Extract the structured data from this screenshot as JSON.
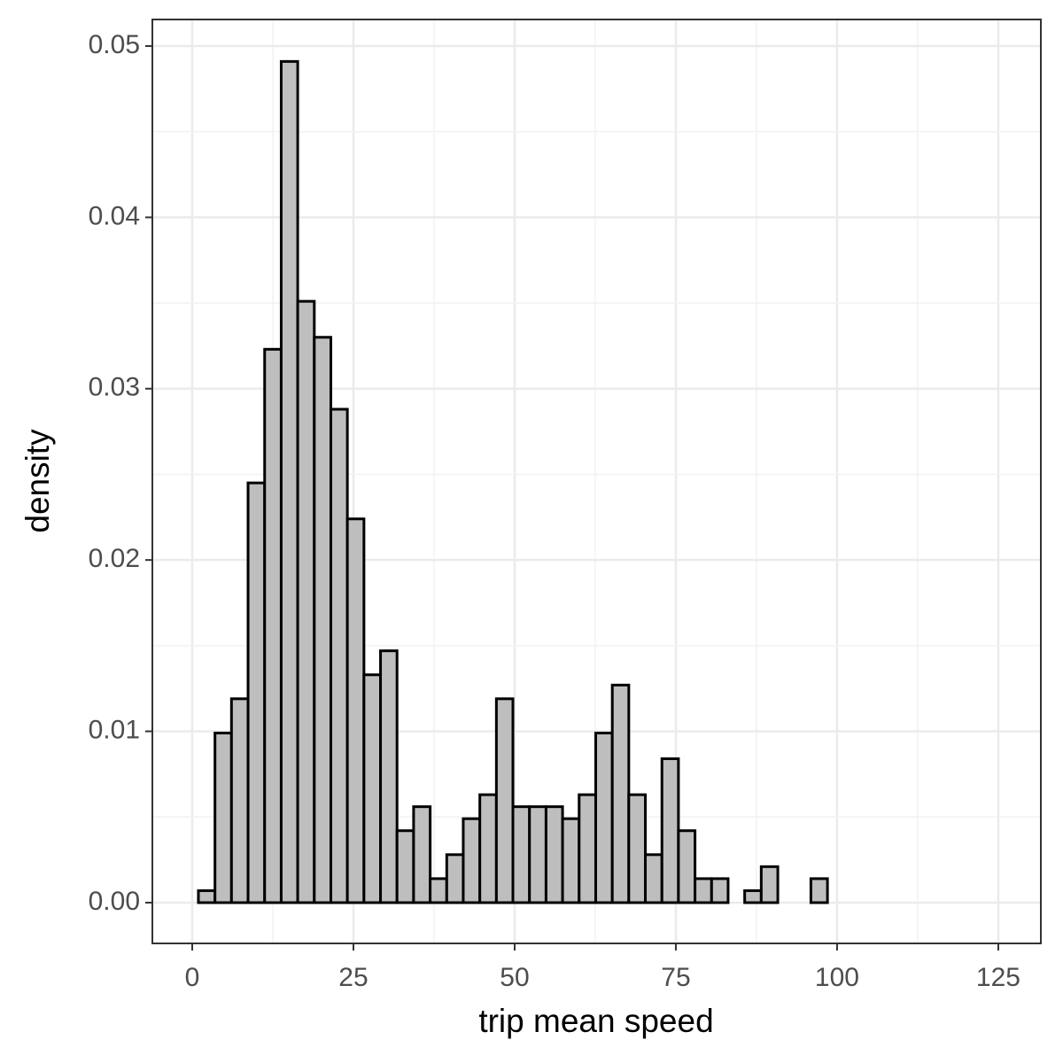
{
  "chart_data": {
    "type": "histogram",
    "x_label": "trip mean speed",
    "y_label": "density",
    "bins": [
      0.96,
      3.53,
      6.09,
      8.66,
      11.23,
      13.8,
      16.36,
      18.93,
      21.5,
      24.06,
      26.63,
      29.2,
      31.76,
      34.33,
      36.9,
      39.47,
      42.03,
      44.6,
      47.17,
      49.73,
      52.3,
      54.87,
      57.43,
      60.0,
      62.57,
      65.14,
      67.7,
      70.27,
      72.84,
      75.4,
      77.97,
      80.54,
      83.1,
      85.67,
      88.24,
      90.81,
      93.37,
      95.94,
      98.51,
      101.07,
      103.64,
      106.21,
      108.77,
      111.34,
      113.91,
      116.48,
      119.04,
      121.61,
      124.18
    ],
    "values": [
      0.0007,
      0.0099,
      0.0119,
      0.0245,
      0.0323,
      0.0491,
      0.0351,
      0.033,
      0.0288,
      0.0224,
      0.0133,
      0.0147,
      0.0042,
      0.0056,
      0.0014,
      0.0028,
      0.0049,
      0.0063,
      0.0119,
      0.0056,
      0.0056,
      0.0056,
      0.0049,
      0.0063,
      0.0099,
      0.0127,
      0.0063,
      0.0028,
      0.0084,
      0.0042,
      0.0014,
      0.0014,
      0,
      0.0007,
      0.0021,
      0,
      0,
      0.0014,
      0,
      0,
      0,
      0,
      0,
      0,
      0,
      0,
      0,
      0
    ],
    "color": "#bebebe",
    "edgecolor": "#000000",
    "xlim": [
      -6.18,
      131.6
    ],
    "ylim": [
      -0.00238,
      0.05155
    ],
    "xticks": [
      0,
      25,
      50,
      75,
      100,
      125
    ],
    "yticks": [
      {
        "value": 0,
        "label": "0.00"
      },
      {
        "value": 0.01,
        "label": "0.01"
      },
      {
        "value": 0.02,
        "label": "0.02"
      },
      {
        "value": 0.03,
        "label": "0.03"
      },
      {
        "value": 0.04,
        "label": "0.04"
      },
      {
        "value": 0.05,
        "label": "0.05"
      }
    ],
    "grid": true
  }
}
